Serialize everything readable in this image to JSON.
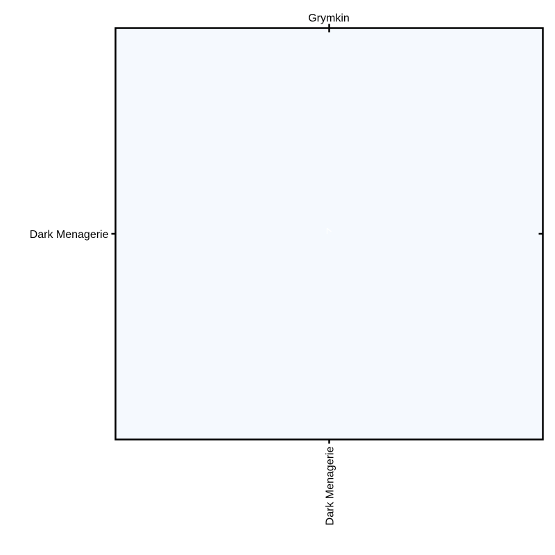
{
  "chart_data": {
    "type": "heatmap",
    "title": "Grymkin",
    "xlabel": "",
    "ylabel": "",
    "x_categories": [
      "Dark Menagerie"
    ],
    "y_categories": [
      "Dark Menagerie"
    ],
    "values": [
      [
        null
      ]
    ],
    "grid": false,
    "colors": {
      "cell": "#f5f9fe",
      "frame": "#000000",
      "marker": "#ffffff"
    }
  }
}
